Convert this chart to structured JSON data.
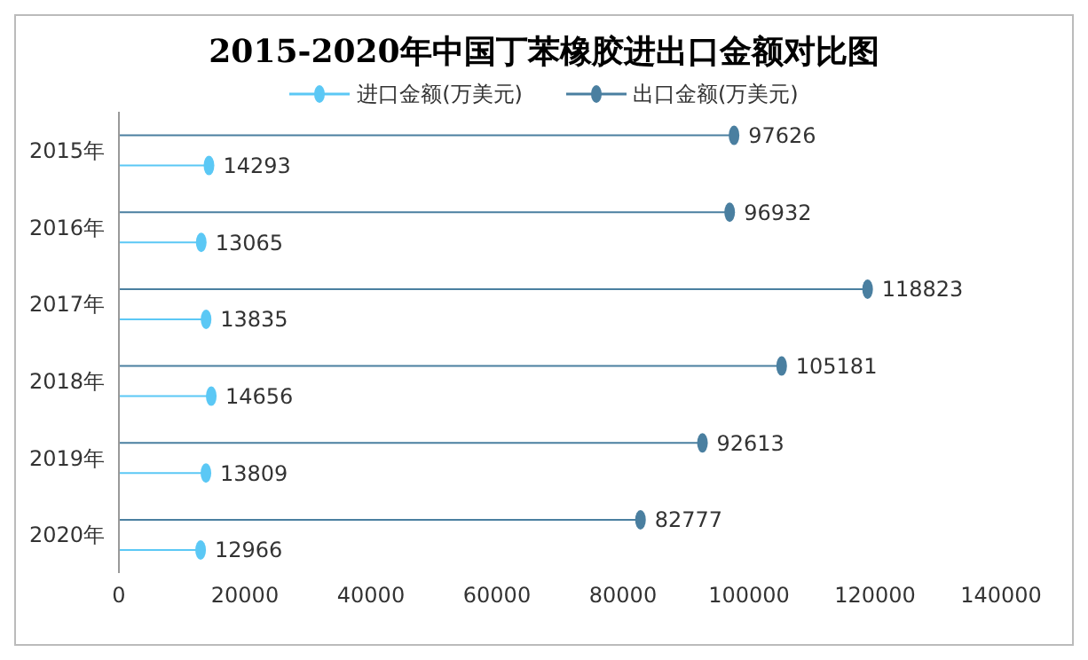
{
  "chart_data": {
    "type": "lollipop",
    "orientation": "horizontal",
    "title": "2015-2020年中国丁苯橡胶进出口金额对比图",
    "categories": [
      "2015年",
      "2016年",
      "2017年",
      "2018年",
      "2019年",
      "2020年"
    ],
    "series": [
      {
        "name": "进口金额(万美元)",
        "color": "#5bc8f5",
        "values": [
          14293,
          13065,
          13835,
          14656,
          13809,
          12966
        ]
      },
      {
        "name": "出口金额(万美元)",
        "color": "#4a7fa0",
        "values": [
          97626,
          96932,
          118823,
          105181,
          92613,
          82777
        ]
      }
    ],
    "xlim": [
      0,
      140000
    ],
    "xticks": [
      0,
      20000,
      40000,
      60000,
      80000,
      100000,
      120000,
      140000
    ],
    "data_labels": true,
    "legend": "top",
    "marker": "circle",
    "grid": false
  }
}
